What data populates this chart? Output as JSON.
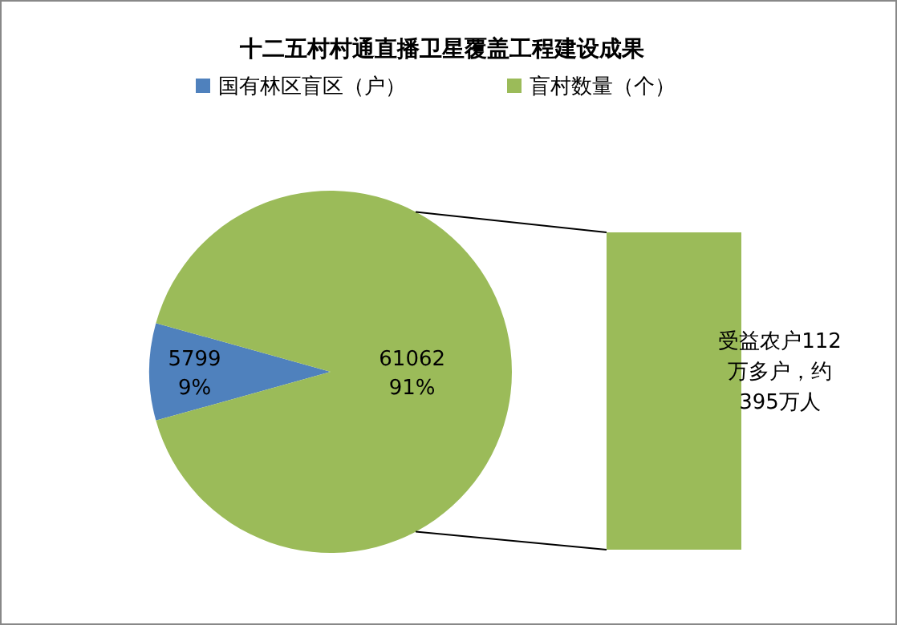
{
  "chart_data": {
    "type": "pie",
    "title": "十二五村村通直播卫星覆盖工程建设成果",
    "categories": [
      "国有林区盲区（户）",
      "盲村数量（个）"
    ],
    "values": [
      5799,
      61062
    ],
    "colors": [
      "#4f81bd",
      "#9bbb59"
    ],
    "value_labels": [
      "5799\n9%",
      "61062\n91%"
    ],
    "legend": "top",
    "annotations": [
      "受益农户112\n万多户，约\n395万人"
    ]
  }
}
